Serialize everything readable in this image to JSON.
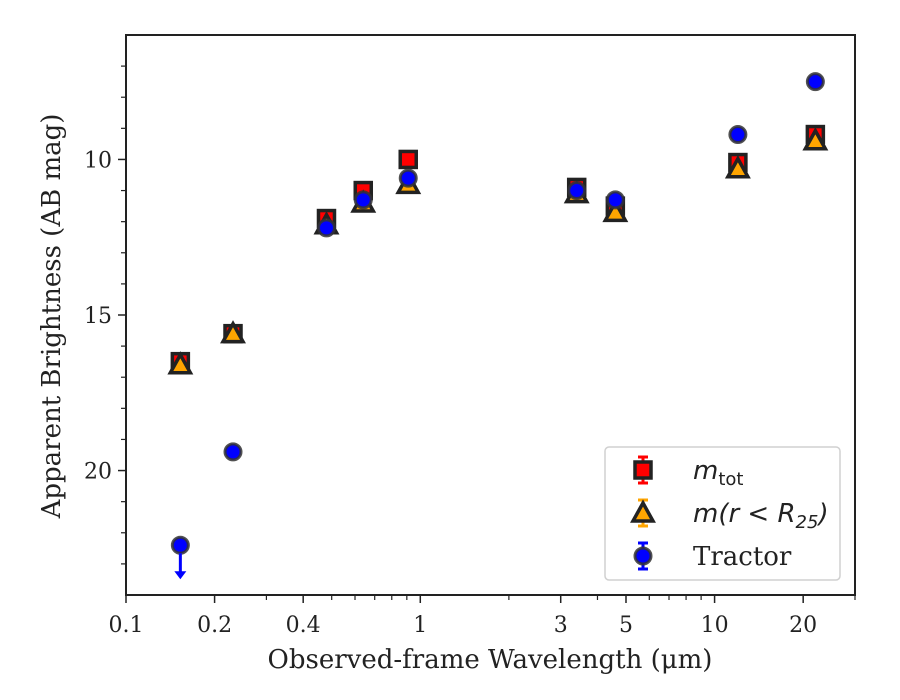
{
  "chart_data": {
    "type": "scatter",
    "xlabel": "Observed-frame Wavelength (μm)",
    "ylabel": "Apparent Brightness (AB mag)",
    "x_scale": "log",
    "y_inverted": true,
    "xlim": [
      0.1,
      30
    ],
    "ylim": [
      24,
      6
    ],
    "x_ticks": [
      {
        "value": 0.1,
        "label": "0.1"
      },
      {
        "value": 0.2,
        "label": "0.2"
      },
      {
        "value": 0.4,
        "label": "0.4"
      },
      {
        "value": 1,
        "label": "1"
      },
      {
        "value": 3,
        "label": "3"
      },
      {
        "value": 5,
        "label": "5"
      },
      {
        "value": 10,
        "label": "10"
      },
      {
        "value": 20,
        "label": "20"
      }
    ],
    "y_ticks": [
      {
        "value": 10,
        "label": "10"
      },
      {
        "value": 15,
        "label": "15"
      },
      {
        "value": 20,
        "label": "20"
      }
    ],
    "grid": false,
    "legend_position": "lower-right",
    "series": [
      {
        "name": "m_tot",
        "legend_label": {
          "symbol": "m",
          "sub": "tot",
          "suffix": ""
        },
        "marker": "square",
        "color": "#ff0000",
        "edge_color": "#222222",
        "points": [
          {
            "x": 0.153,
            "y": 16.5
          },
          {
            "x": 0.231,
            "y": 15.6
          },
          {
            "x": 0.48,
            "y": 11.9
          },
          {
            "x": 0.64,
            "y": 11.0
          },
          {
            "x": 0.91,
            "y": 10.0
          },
          {
            "x": 3.4,
            "y": 10.9
          },
          {
            "x": 4.6,
            "y": 11.5
          },
          {
            "x": 12.0,
            "y": 10.1
          },
          {
            "x": 22.0,
            "y": 9.2
          }
        ]
      },
      {
        "name": "m(r<R25)",
        "legend_label": {
          "prefix": "m(r < R",
          "sub": "25",
          "suffix": ")"
        },
        "marker": "triangle",
        "color": "#ffa500",
        "edge_color": "#222222",
        "points": [
          {
            "x": 0.153,
            "y": 16.6
          },
          {
            "x": 0.231,
            "y": 15.6
          },
          {
            "x": 0.48,
            "y": 12.1
          },
          {
            "x": 0.64,
            "y": 11.4
          },
          {
            "x": 0.91,
            "y": 10.8
          },
          {
            "x": 3.4,
            "y": 11.1
          },
          {
            "x": 4.6,
            "y": 11.7
          },
          {
            "x": 12.0,
            "y": 10.3
          },
          {
            "x": 22.0,
            "y": 9.4
          }
        ]
      },
      {
        "name": "Tractor",
        "legend_label": {
          "text": "Tractor"
        },
        "marker": "circle",
        "color": "#0000ff",
        "edge_color": "#333333",
        "points": [
          {
            "x": 0.153,
            "y": 22.4,
            "upper_limit": true
          },
          {
            "x": 0.231,
            "y": 19.4
          },
          {
            "x": 0.48,
            "y": 12.2
          },
          {
            "x": 0.64,
            "y": 11.3
          },
          {
            "x": 0.91,
            "y": 10.6
          },
          {
            "x": 3.4,
            "y": 11.0
          },
          {
            "x": 4.6,
            "y": 11.3
          },
          {
            "x": 12.0,
            "y": 9.2
          },
          {
            "x": 22.0,
            "y": 7.5
          }
        ]
      }
    ]
  }
}
